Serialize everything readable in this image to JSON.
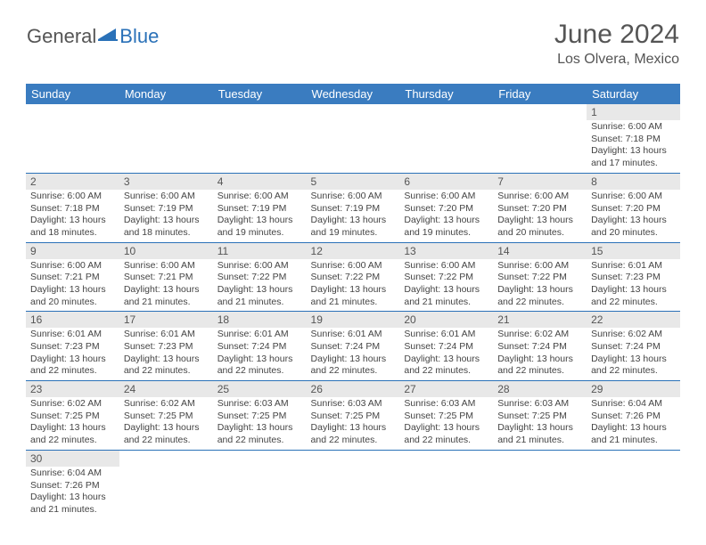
{
  "brand": {
    "part1": "General",
    "part2": "Blue"
  },
  "title": {
    "month": "June 2024",
    "location": "Los Olvera, Mexico"
  },
  "colors": {
    "header_bg": "#3a7cc0",
    "header_text": "#ffffff",
    "band_bg": "#e8e8e8",
    "cell_border": "#2a71b8",
    "body_text": "#444444",
    "logo_blue": "#2a71b8",
    "logo_gray": "#555555"
  },
  "weekdays": [
    "Sunday",
    "Monday",
    "Tuesday",
    "Wednesday",
    "Thursday",
    "Friday",
    "Saturday"
  ],
  "weeks": [
    [
      null,
      null,
      null,
      null,
      null,
      null,
      {
        "n": "1",
        "sunrise": "Sunrise: 6:00 AM",
        "sunset": "Sunset: 7:18 PM",
        "d1": "Daylight: 13 hours",
        "d2": "and 17 minutes."
      }
    ],
    [
      {
        "n": "2",
        "sunrise": "Sunrise: 6:00 AM",
        "sunset": "Sunset: 7:18 PM",
        "d1": "Daylight: 13 hours",
        "d2": "and 18 minutes."
      },
      {
        "n": "3",
        "sunrise": "Sunrise: 6:00 AM",
        "sunset": "Sunset: 7:19 PM",
        "d1": "Daylight: 13 hours",
        "d2": "and 18 minutes."
      },
      {
        "n": "4",
        "sunrise": "Sunrise: 6:00 AM",
        "sunset": "Sunset: 7:19 PM",
        "d1": "Daylight: 13 hours",
        "d2": "and 19 minutes."
      },
      {
        "n": "5",
        "sunrise": "Sunrise: 6:00 AM",
        "sunset": "Sunset: 7:19 PM",
        "d1": "Daylight: 13 hours",
        "d2": "and 19 minutes."
      },
      {
        "n": "6",
        "sunrise": "Sunrise: 6:00 AM",
        "sunset": "Sunset: 7:20 PM",
        "d1": "Daylight: 13 hours",
        "d2": "and 19 minutes."
      },
      {
        "n": "7",
        "sunrise": "Sunrise: 6:00 AM",
        "sunset": "Sunset: 7:20 PM",
        "d1": "Daylight: 13 hours",
        "d2": "and 20 minutes."
      },
      {
        "n": "8",
        "sunrise": "Sunrise: 6:00 AM",
        "sunset": "Sunset: 7:20 PM",
        "d1": "Daylight: 13 hours",
        "d2": "and 20 minutes."
      }
    ],
    [
      {
        "n": "9",
        "sunrise": "Sunrise: 6:00 AM",
        "sunset": "Sunset: 7:21 PM",
        "d1": "Daylight: 13 hours",
        "d2": "and 20 minutes."
      },
      {
        "n": "10",
        "sunrise": "Sunrise: 6:00 AM",
        "sunset": "Sunset: 7:21 PM",
        "d1": "Daylight: 13 hours",
        "d2": "and 21 minutes."
      },
      {
        "n": "11",
        "sunrise": "Sunrise: 6:00 AM",
        "sunset": "Sunset: 7:22 PM",
        "d1": "Daylight: 13 hours",
        "d2": "and 21 minutes."
      },
      {
        "n": "12",
        "sunrise": "Sunrise: 6:00 AM",
        "sunset": "Sunset: 7:22 PM",
        "d1": "Daylight: 13 hours",
        "d2": "and 21 minutes."
      },
      {
        "n": "13",
        "sunrise": "Sunrise: 6:00 AM",
        "sunset": "Sunset: 7:22 PM",
        "d1": "Daylight: 13 hours",
        "d2": "and 21 minutes."
      },
      {
        "n": "14",
        "sunrise": "Sunrise: 6:00 AM",
        "sunset": "Sunset: 7:22 PM",
        "d1": "Daylight: 13 hours",
        "d2": "and 22 minutes."
      },
      {
        "n": "15",
        "sunrise": "Sunrise: 6:01 AM",
        "sunset": "Sunset: 7:23 PM",
        "d1": "Daylight: 13 hours",
        "d2": "and 22 minutes."
      }
    ],
    [
      {
        "n": "16",
        "sunrise": "Sunrise: 6:01 AM",
        "sunset": "Sunset: 7:23 PM",
        "d1": "Daylight: 13 hours",
        "d2": "and 22 minutes."
      },
      {
        "n": "17",
        "sunrise": "Sunrise: 6:01 AM",
        "sunset": "Sunset: 7:23 PM",
        "d1": "Daylight: 13 hours",
        "d2": "and 22 minutes."
      },
      {
        "n": "18",
        "sunrise": "Sunrise: 6:01 AM",
        "sunset": "Sunset: 7:24 PM",
        "d1": "Daylight: 13 hours",
        "d2": "and 22 minutes."
      },
      {
        "n": "19",
        "sunrise": "Sunrise: 6:01 AM",
        "sunset": "Sunset: 7:24 PM",
        "d1": "Daylight: 13 hours",
        "d2": "and 22 minutes."
      },
      {
        "n": "20",
        "sunrise": "Sunrise: 6:01 AM",
        "sunset": "Sunset: 7:24 PM",
        "d1": "Daylight: 13 hours",
        "d2": "and 22 minutes."
      },
      {
        "n": "21",
        "sunrise": "Sunrise: 6:02 AM",
        "sunset": "Sunset: 7:24 PM",
        "d1": "Daylight: 13 hours",
        "d2": "and 22 minutes."
      },
      {
        "n": "22",
        "sunrise": "Sunrise: 6:02 AM",
        "sunset": "Sunset: 7:24 PM",
        "d1": "Daylight: 13 hours",
        "d2": "and 22 minutes."
      }
    ],
    [
      {
        "n": "23",
        "sunrise": "Sunrise: 6:02 AM",
        "sunset": "Sunset: 7:25 PM",
        "d1": "Daylight: 13 hours",
        "d2": "and 22 minutes."
      },
      {
        "n": "24",
        "sunrise": "Sunrise: 6:02 AM",
        "sunset": "Sunset: 7:25 PM",
        "d1": "Daylight: 13 hours",
        "d2": "and 22 minutes."
      },
      {
        "n": "25",
        "sunrise": "Sunrise: 6:03 AM",
        "sunset": "Sunset: 7:25 PM",
        "d1": "Daylight: 13 hours",
        "d2": "and 22 minutes."
      },
      {
        "n": "26",
        "sunrise": "Sunrise: 6:03 AM",
        "sunset": "Sunset: 7:25 PM",
        "d1": "Daylight: 13 hours",
        "d2": "and 22 minutes."
      },
      {
        "n": "27",
        "sunrise": "Sunrise: 6:03 AM",
        "sunset": "Sunset: 7:25 PM",
        "d1": "Daylight: 13 hours",
        "d2": "and 22 minutes."
      },
      {
        "n": "28",
        "sunrise": "Sunrise: 6:03 AM",
        "sunset": "Sunset: 7:25 PM",
        "d1": "Daylight: 13 hours",
        "d2": "and 21 minutes."
      },
      {
        "n": "29",
        "sunrise": "Sunrise: 6:04 AM",
        "sunset": "Sunset: 7:26 PM",
        "d1": "Daylight: 13 hours",
        "d2": "and 21 minutes."
      }
    ],
    [
      {
        "n": "30",
        "sunrise": "Sunrise: 6:04 AM",
        "sunset": "Sunset: 7:26 PM",
        "d1": "Daylight: 13 hours",
        "d2": "and 21 minutes."
      },
      null,
      null,
      null,
      null,
      null,
      null
    ]
  ]
}
